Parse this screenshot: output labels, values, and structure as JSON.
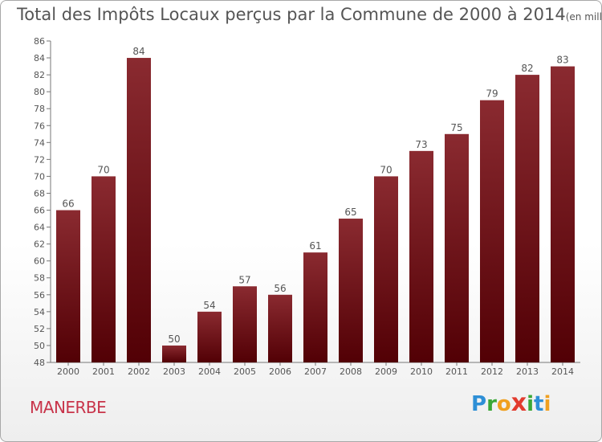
{
  "header": {
    "title": "Total des Impôts Locaux perçus par la Commune de 2000 à 2014",
    "unit": "(en milliers d'€)"
  },
  "commune": "MANERBE",
  "logo": {
    "letters": [
      "P",
      "r",
      "o",
      "x",
      "i",
      "t",
      "i"
    ],
    "colors": [
      "#2e8fd6",
      "#3aa836",
      "#f0a020",
      "#e23b2e",
      "#3aa836",
      "#2e8fd6",
      "#f0a020"
    ]
  },
  "colors": {
    "bar_top": "#8a2a30",
    "bar_bottom": "#520005",
    "text": "#555555",
    "commune": "#c8344a"
  },
  "chart_data": {
    "type": "bar",
    "title": "Total des Impôts Locaux perçus par la Commune de 2000 à 2014",
    "subtitle": "(en milliers d'€)",
    "categories": [
      "2000",
      "2001",
      "2002",
      "2003",
      "2004",
      "2005",
      "2006",
      "2007",
      "2008",
      "2009",
      "2010",
      "2011",
      "2012",
      "2013",
      "2014"
    ],
    "values": [
      66,
      70,
      84,
      50,
      54,
      57,
      56,
      61,
      65,
      70,
      73,
      75,
      79,
      82,
      83
    ],
    "xlabel": "",
    "ylabel": "",
    "ylim": [
      48,
      86
    ],
    "yticks": [
      48,
      50,
      52,
      54,
      56,
      58,
      60,
      62,
      64,
      66,
      68,
      70,
      72,
      74,
      76,
      78,
      80,
      82,
      84,
      86
    ],
    "grid": false,
    "legend": "none"
  }
}
